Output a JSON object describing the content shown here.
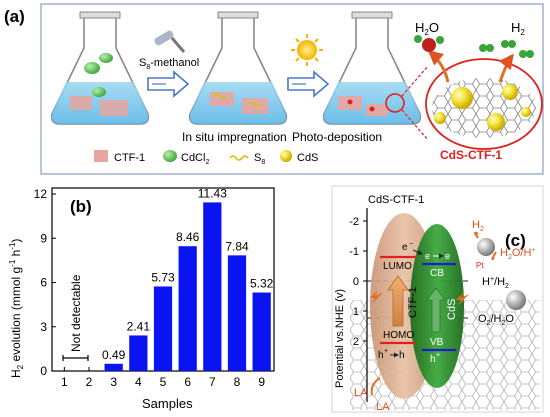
{
  "panel_a": {
    "label": "(a)",
    "reagent": "S",
    "reagent_sub": "8",
    "reagent_rest": "-methanol",
    "step1": "In situ impregnation",
    "step2": "Photo-deposition",
    "h2o": "H",
    "h2o_sub": "2",
    "h2o_rest": "O",
    "h2": "H",
    "h2_sub": "2",
    "product": "CdS-CTF-1",
    "legend": {
      "ctf": "CTF-1",
      "cdcl_main": "CdCl",
      "cdcl_sub": "2",
      "s8_main": "S",
      "s8_sub": "8",
      "cds": "CdS"
    },
    "colors": {
      "ctf": "#e8a5a0",
      "cdcl2": "#66cc66",
      "s8": "#d4c400",
      "cds": "#f0e020",
      "arrow": "#4a78c8",
      "product": "#e0201c"
    }
  },
  "panel_b": {
    "label": "(b)",
    "not_detectable": "Not detectable"
  },
  "chart_data": {
    "type": "bar",
    "categories": [
      "1",
      "2",
      "3",
      "4",
      "5",
      "6",
      "7",
      "8",
      "9"
    ],
    "values": [
      0,
      0,
      0.49,
      2.41,
      5.73,
      8.46,
      11.43,
      7.84,
      5.32
    ],
    "data_labels": [
      "",
      "",
      "0.49",
      "2.41",
      "5.73",
      "8.46",
      "11.43",
      "7.84",
      "5.32"
    ],
    "yticks": [
      "0",
      "3",
      "6",
      "9",
      "12"
    ],
    "ylim": [
      0,
      12
    ],
    "xlabel": "Samples",
    "ylabel_pre": "H",
    "ylabel_sub": "2",
    "ylabel_mid": " evolution (mmol g",
    "ylabel_sup1": "-1",
    "ylabel_mid2": " h",
    "ylabel_sup2": "-1",
    "ylabel_end": ")",
    "bar_color": "#0a14f0"
  },
  "panel_c": {
    "label": "(c)",
    "title": "CdS-CTF-1",
    "yaxis": "Potential vs.NHE (v)",
    "yticks": [
      "-2",
      "-1",
      "0",
      "1",
      "2"
    ],
    "lumo": "LUMO",
    "homo": "HOMO",
    "ctf": "CTF-1",
    "cb": "CB",
    "vb": "VB",
    "cds": "CdS",
    "eminus": "e",
    "hplus": "h",
    "pt": "Pt",
    "h2": "H",
    "h2_sub": "2",
    "h2o_h": "H",
    "h2o_h_sub": "2",
    "h2o_h_rest": "O/H",
    "hh2": "H",
    "hh2_mid": "/H",
    "hh2_sub": "2",
    "o2": "O",
    "o2_sub": "2",
    "o2_rest": "/H",
    "o2_sub2": "2",
    "o2_end": "O",
    "la": "LA",
    "la2": "LA"
  }
}
